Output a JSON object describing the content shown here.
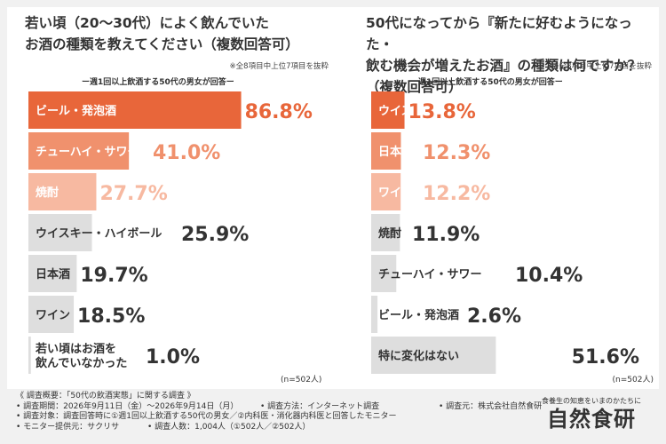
{
  "left": {
    "title": "若い頃（20〜30代）によく飲んでいた\nお酒の種類を教えてください（複数回答可）",
    "note": "※全8項目中上位7項目を抜粋",
    "subtitle": "ー週1回以上飲酒する50代の男女が回答ー",
    "sample": "(n=502人)"
  },
  "right": {
    "title": "50代になってから『新たに好むようになった・\n飲む機会が増えたお酒』の種類は何ですか？\n（複数回答可）",
    "note": "※全8項目中上位7項目を抜粋",
    "subtitle": "ー週1回以上飲酒する50代の男女が回答ー",
    "sample": "(n=502人)"
  },
  "colors": {
    "rank1": "#e8663a",
    "rank2": "#f0916d",
    "rank3": "#f7b9a1",
    "other": "#dedede",
    "dark_text": "#333333",
    "accent_text_rank1": "#e8663a",
    "accent_text_rank2": "#f0916d",
    "accent_text_rank3": "#f7b9a1"
  },
  "chart_data": [
    {
      "type": "bar",
      "orientation": "horizontal",
      "categories": [
        "ビール・発泡酒",
        "チューハイ・サワー",
        "焼酎",
        "ウイスキー・ハイボール",
        "日本酒",
        "ワイン",
        "若い頃はお酒を\n飲んでいなかった"
      ],
      "values": [
        86.8,
        41.0,
        27.7,
        25.9,
        19.7,
        18.5,
        1.0
      ],
      "labels": [
        "86.8%",
        "41.0%",
        "27.7%",
        "25.9%",
        "19.7%",
        "18.5%",
        "1.0%"
      ],
      "xlim": [
        0,
        100
      ]
    },
    {
      "type": "bar",
      "orientation": "horizontal",
      "categories": [
        "ウイスキー・ハイボール",
        "日本酒",
        "ワイン",
        "焼酎",
        "チューハイ・サワー",
        "ビール・発泡酒",
        "特に変化はない"
      ],
      "values": [
        13.8,
        12.3,
        12.2,
        11.9,
        10.4,
        2.6,
        51.6
      ],
      "labels": [
        "13.8%",
        "12.3%",
        "12.2%",
        "11.9%",
        "10.4%",
        "2.6%",
        "51.6%"
      ],
      "xlim": [
        0,
        100
      ]
    }
  ],
  "footer": {
    "lines": [
      [
        "《 調査概要：「50代の飲酒実態」に関する調査 》"
      ],
      [
        "• 調査期間：2026年9月11日（金）〜2026年9月14日（月）",
        "• 調査方法：インターネット調査",
        "• 調査元：株式会社自然食研"
      ],
      [
        "• 調査対象：調査回答時に①週1回以上飲酒する50代の男女／②内科医・消化器内科医と回答したモニター"
      ],
      [
        "• モニター提供元：サクリサ",
        "• 調査人数：1,004人（①502人／②502人）"
      ]
    ]
  },
  "brand": {
    "tagline": "食養生の知恵をいまのかたちに",
    "name": "自然食研"
  }
}
